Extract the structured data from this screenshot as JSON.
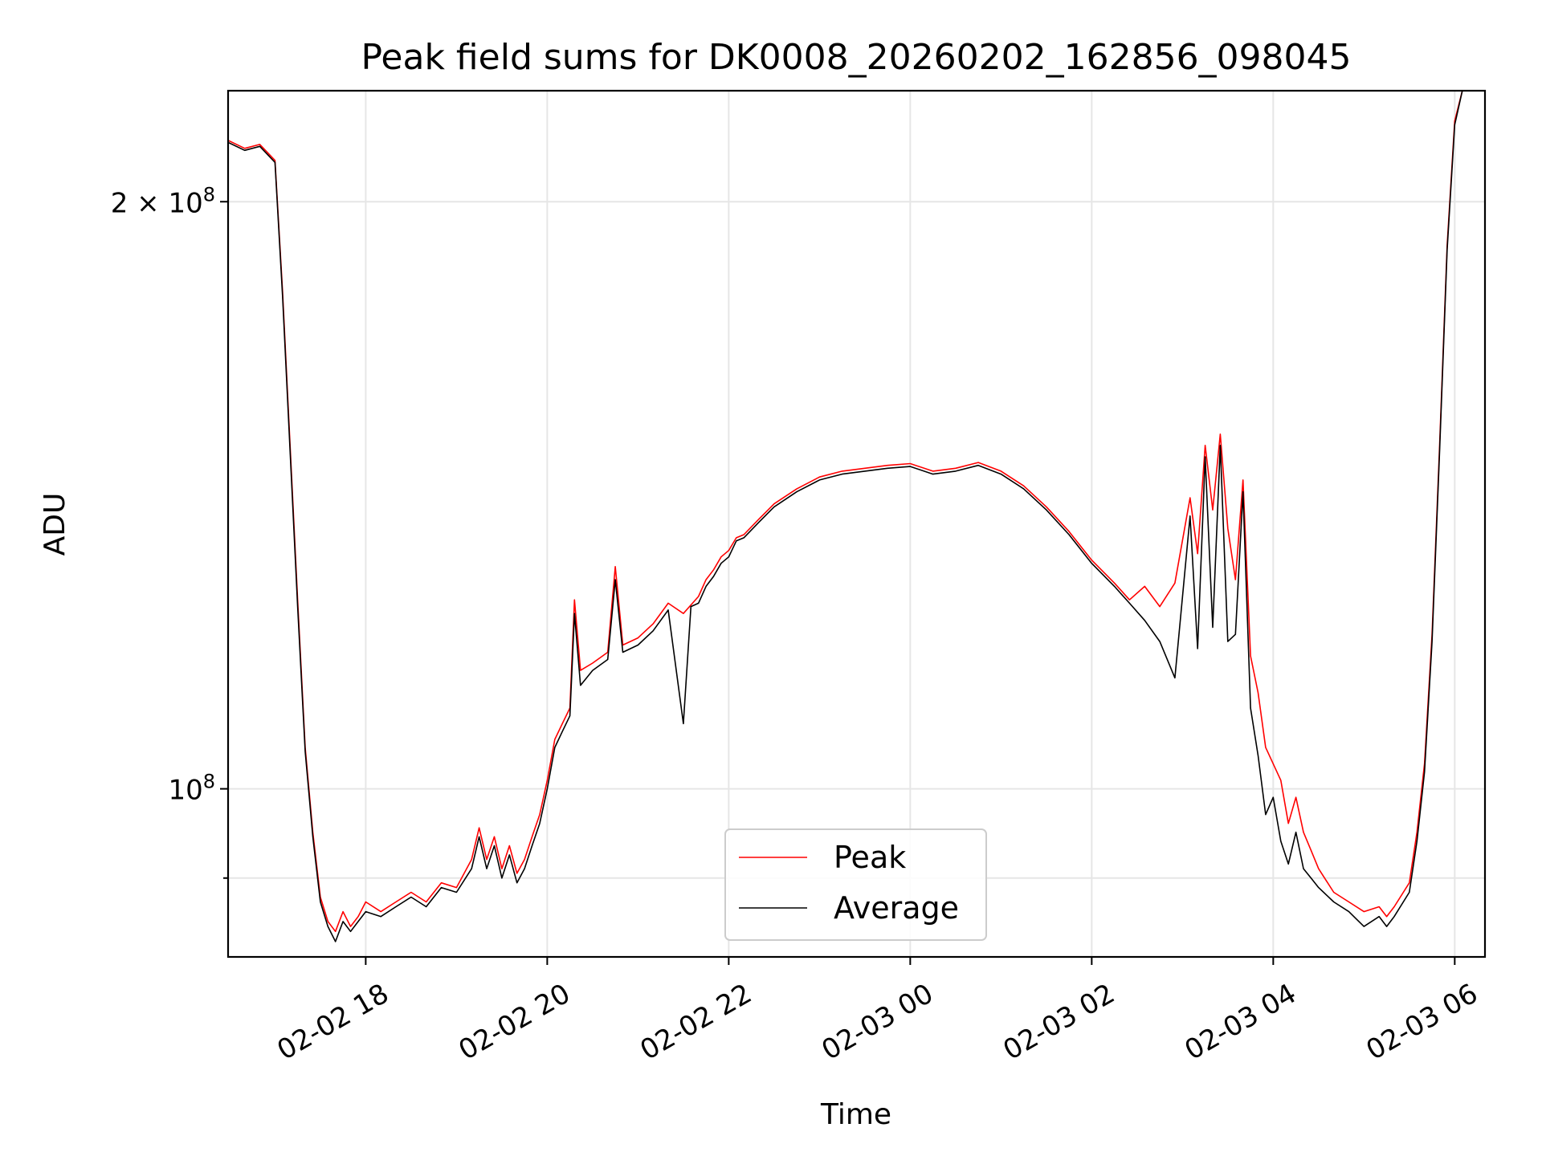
{
  "chart_data": {
    "type": "line",
    "title": "Peak field sums for DK0008_20260202_162856_098045",
    "xlabel": "Time",
    "ylabel": "ADU",
    "x_unit": "datetime",
    "xlim": [
      "2026-02-02T16:29",
      "2026-02-03T06:20"
    ],
    "ylim": [
      82000000,
      228000000
    ],
    "yscale": "log",
    "grid": true,
    "legend": {
      "placement": "lower-center"
    },
    "x_ticks": [
      {
        "value": "2026-02-02T18:00",
        "label": "02-02 18"
      },
      {
        "value": "2026-02-02T20:00",
        "label": "02-02 20"
      },
      {
        "value": "2026-02-02T22:00",
        "label": "02-02 22"
      },
      {
        "value": "2026-02-03T00:00",
        "label": "02-03 00"
      },
      {
        "value": "2026-02-03T02:00",
        "label": "02-03 02"
      },
      {
        "value": "2026-02-03T04:00",
        "label": "02-03 04"
      },
      {
        "value": "2026-02-03T06:00",
        "label": "02-03 06"
      }
    ],
    "y_ticks_major": [
      {
        "value": 100000000,
        "label_base": "10",
        "label_exp": "8",
        "label_coef": ""
      },
      {
        "value": 200000000,
        "label_base": "10",
        "label_exp": "8",
        "label_coef": "2 × "
      }
    ],
    "y_ticks_minor": [
      90000000
    ],
    "series": [
      {
        "name": "Peak",
        "color": "#ff0000",
        "points": [
          [
            "2026-02-02T16:29",
            215000000
          ],
          [
            "2026-02-02T16:40",
            213000000
          ],
          [
            "2026-02-02T16:50",
            214000000
          ],
          [
            "2026-02-02T17:00",
            210000000
          ],
          [
            "2026-02-02T17:05",
            180000000
          ],
          [
            "2026-02-02T17:10",
            150000000
          ],
          [
            "2026-02-02T17:15",
            125000000
          ],
          [
            "2026-02-02T17:20",
            105000000
          ],
          [
            "2026-02-02T17:25",
            95000000
          ],
          [
            "2026-02-02T17:30",
            88000000
          ],
          [
            "2026-02-02T17:35",
            85500000
          ],
          [
            "2026-02-02T17:40",
            84500000
          ],
          [
            "2026-02-02T17:45",
            86500000
          ],
          [
            "2026-02-02T17:50",
            85000000
          ],
          [
            "2026-02-02T17:55",
            86000000
          ],
          [
            "2026-02-02T18:00",
            87500000
          ],
          [
            "2026-02-02T18:10",
            86500000
          ],
          [
            "2026-02-02T18:20",
            87500000
          ],
          [
            "2026-02-02T18:30",
            88500000
          ],
          [
            "2026-02-02T18:40",
            87500000
          ],
          [
            "2026-02-02T18:50",
            89500000
          ],
          [
            "2026-02-02T19:00",
            89000000
          ],
          [
            "2026-02-02T19:10",
            92000000
          ],
          [
            "2026-02-02T19:15",
            95500000
          ],
          [
            "2026-02-02T19:20",
            92000000
          ],
          [
            "2026-02-02T19:25",
            94500000
          ],
          [
            "2026-02-02T19:30",
            91000000
          ],
          [
            "2026-02-02T19:35",
            93500000
          ],
          [
            "2026-02-02T19:40",
            90500000
          ],
          [
            "2026-02-02T19:45",
            92000000
          ],
          [
            "2026-02-02T19:50",
            94500000
          ],
          [
            "2026-02-02T19:55",
            97000000
          ],
          [
            "2026-02-02T20:00",
            101000000
          ],
          [
            "2026-02-02T20:05",
            106000000
          ],
          [
            "2026-02-02T20:10",
            108000000
          ],
          [
            "2026-02-02T20:15",
            110000000
          ],
          [
            "2026-02-02T20:18",
            125000000
          ],
          [
            "2026-02-02T20:22",
            115000000
          ],
          [
            "2026-02-02T20:30",
            116000000
          ],
          [
            "2026-02-02T20:40",
            117500000
          ],
          [
            "2026-02-02T20:45",
            130000000
          ],
          [
            "2026-02-02T20:50",
            118500000
          ],
          [
            "2026-02-02T21:00",
            119500000
          ],
          [
            "2026-02-02T21:10",
            121500000
          ],
          [
            "2026-02-02T21:20",
            124500000
          ],
          [
            "2026-02-02T21:30",
            123000000
          ],
          [
            "2026-02-02T21:40",
            125500000
          ],
          [
            "2026-02-02T21:45",
            128000000
          ],
          [
            "2026-02-02T21:50",
            129500000
          ],
          [
            "2026-02-02T21:55",
            131500000
          ],
          [
            "2026-02-02T22:00",
            132500000
          ],
          [
            "2026-02-02T22:05",
            134500000
          ],
          [
            "2026-02-02T22:10",
            135000000
          ],
          [
            "2026-02-02T22:20",
            137500000
          ],
          [
            "2026-02-02T22:30",
            140000000
          ],
          [
            "2026-02-02T22:45",
            142500000
          ],
          [
            "2026-02-02T23:00",
            144500000
          ],
          [
            "2026-02-02T23:15",
            145500000
          ],
          [
            "2026-02-02T23:30",
            146000000
          ],
          [
            "2026-02-02T23:45",
            146500000
          ],
          [
            "2026-02-03T00:00",
            146800000
          ],
          [
            "2026-02-03T00:15",
            145500000
          ],
          [
            "2026-02-03T00:30",
            146000000
          ],
          [
            "2026-02-03T00:45",
            147000000
          ],
          [
            "2026-02-03T01:00",
            145500000
          ],
          [
            "2026-02-03T01:15",
            143000000
          ],
          [
            "2026-02-03T01:30",
            139500000
          ],
          [
            "2026-02-03T01:45",
            135500000
          ],
          [
            "2026-02-03T02:00",
            131000000
          ],
          [
            "2026-02-03T02:15",
            127500000
          ],
          [
            "2026-02-03T02:25",
            125000000
          ],
          [
            "2026-02-03T02:35",
            127000000
          ],
          [
            "2026-02-03T02:45",
            124000000
          ],
          [
            "2026-02-03T02:55",
            127500000
          ],
          [
            "2026-02-03T03:05",
            141000000
          ],
          [
            "2026-02-03T03:10",
            132000000
          ],
          [
            "2026-02-03T03:15",
            150000000
          ],
          [
            "2026-02-03T03:20",
            139000000
          ],
          [
            "2026-02-03T03:25",
            152000000
          ],
          [
            "2026-02-03T03:30",
            136000000
          ],
          [
            "2026-02-03T03:35",
            128000000
          ],
          [
            "2026-02-03T03:40",
            144000000
          ],
          [
            "2026-02-03T03:45",
            117000000
          ],
          [
            "2026-02-03T03:50",
            112000000
          ],
          [
            "2026-02-03T03:55",
            105000000
          ],
          [
            "2026-02-03T04:00",
            103000000
          ],
          [
            "2026-02-03T04:05",
            101000000
          ],
          [
            "2026-02-03T04:10",
            96000000
          ],
          [
            "2026-02-03T04:15",
            99000000
          ],
          [
            "2026-02-03T04:20",
            95000000
          ],
          [
            "2026-02-03T04:25",
            93000000
          ],
          [
            "2026-02-03T04:30",
            91000000
          ],
          [
            "2026-02-03T04:40",
            88500000
          ],
          [
            "2026-02-03T04:50",
            87500000
          ],
          [
            "2026-02-03T05:00",
            86500000
          ],
          [
            "2026-02-03T05:10",
            87000000
          ],
          [
            "2026-02-03T05:15",
            86000000
          ],
          [
            "2026-02-03T05:20",
            87000000
          ],
          [
            "2026-02-03T05:30",
            89500000
          ],
          [
            "2026-02-03T05:35",
            95000000
          ],
          [
            "2026-02-03T05:40",
            103000000
          ],
          [
            "2026-02-03T05:45",
            120000000
          ],
          [
            "2026-02-03T05:50",
            150000000
          ],
          [
            "2026-02-03T05:55",
            190000000
          ],
          [
            "2026-02-03T06:00",
            220000000
          ],
          [
            "2026-02-03T06:05",
            228000000
          ]
        ]
      },
      {
        "name": "Average",
        "color": "#000000",
        "points": [
          [
            "2026-02-02T16:29",
            214500000
          ],
          [
            "2026-02-02T16:40",
            212500000
          ],
          [
            "2026-02-02T16:50",
            213500000
          ],
          [
            "2026-02-02T17:00",
            209500000
          ],
          [
            "2026-02-02T17:05",
            179000000
          ],
          [
            "2026-02-02T17:10",
            149000000
          ],
          [
            "2026-02-02T17:15",
            124000000
          ],
          [
            "2026-02-02T17:20",
            104500000
          ],
          [
            "2026-02-02T17:25",
            94500000
          ],
          [
            "2026-02-02T17:30",
            87500000
          ],
          [
            "2026-02-02T17:35",
            85000000
          ],
          [
            "2026-02-02T17:40",
            83500000
          ],
          [
            "2026-02-02T17:45",
            85500000
          ],
          [
            "2026-02-02T17:50",
            84500000
          ],
          [
            "2026-02-02T17:55",
            85500000
          ],
          [
            "2026-02-02T18:00",
            86500000
          ],
          [
            "2026-02-02T18:10",
            86000000
          ],
          [
            "2026-02-02T18:20",
            87000000
          ],
          [
            "2026-02-02T18:30",
            88000000
          ],
          [
            "2026-02-02T18:40",
            87000000
          ],
          [
            "2026-02-02T18:50",
            89000000
          ],
          [
            "2026-02-02T19:00",
            88500000
          ],
          [
            "2026-02-02T19:10",
            91000000
          ],
          [
            "2026-02-02T19:15",
            94500000
          ],
          [
            "2026-02-02T19:20",
            91000000
          ],
          [
            "2026-02-02T19:25",
            93500000
          ],
          [
            "2026-02-02T19:30",
            90000000
          ],
          [
            "2026-02-02T19:35",
            92500000
          ],
          [
            "2026-02-02T19:40",
            89500000
          ],
          [
            "2026-02-02T19:45",
            91000000
          ],
          [
            "2026-02-02T19:50",
            93500000
          ],
          [
            "2026-02-02T19:55",
            96000000
          ],
          [
            "2026-02-02T20:00",
            100000000
          ],
          [
            "2026-02-02T20:05",
            105000000
          ],
          [
            "2026-02-02T20:10",
            107000000
          ],
          [
            "2026-02-02T20:15",
            109000000
          ],
          [
            "2026-02-02T20:18",
            123000000
          ],
          [
            "2026-02-02T20:22",
            113000000
          ],
          [
            "2026-02-02T20:30",
            115000000
          ],
          [
            "2026-02-02T20:40",
            116500000
          ],
          [
            "2026-02-02T20:45",
            128000000
          ],
          [
            "2026-02-02T20:50",
            117500000
          ],
          [
            "2026-02-02T21:00",
            118500000
          ],
          [
            "2026-02-02T21:10",
            120500000
          ],
          [
            "2026-02-02T21:20",
            123500000
          ],
          [
            "2026-02-02T21:30",
            108000000
          ],
          [
            "2026-02-02T21:35",
            124000000
          ],
          [
            "2026-02-02T21:40",
            124500000
          ],
          [
            "2026-02-02T21:45",
            127000000
          ],
          [
            "2026-02-02T21:50",
            128500000
          ],
          [
            "2026-02-02T21:55",
            130500000
          ],
          [
            "2026-02-02T22:00",
            131500000
          ],
          [
            "2026-02-02T22:05",
            134000000
          ],
          [
            "2026-02-02T22:10",
            134500000
          ],
          [
            "2026-02-02T22:20",
            137000000
          ],
          [
            "2026-02-02T22:30",
            139500000
          ],
          [
            "2026-02-02T22:45",
            142000000
          ],
          [
            "2026-02-02T23:00",
            144000000
          ],
          [
            "2026-02-02T23:15",
            145000000
          ],
          [
            "2026-02-02T23:30",
            145500000
          ],
          [
            "2026-02-02T23:45",
            146000000
          ],
          [
            "2026-02-03T00:00",
            146300000
          ],
          [
            "2026-02-03T00:15",
            145000000
          ],
          [
            "2026-02-03T00:30",
            145500000
          ],
          [
            "2026-02-03T00:45",
            146500000
          ],
          [
            "2026-02-03T01:00",
            145000000
          ],
          [
            "2026-02-03T01:15",
            142500000
          ],
          [
            "2026-02-03T01:30",
            139000000
          ],
          [
            "2026-02-03T01:45",
            135000000
          ],
          [
            "2026-02-03T02:00",
            130500000
          ],
          [
            "2026-02-03T02:15",
            127000000
          ],
          [
            "2026-02-03T02:25",
            124500000
          ],
          [
            "2026-02-03T02:35",
            122000000
          ],
          [
            "2026-02-03T02:45",
            119000000
          ],
          [
            "2026-02-03T02:55",
            114000000
          ],
          [
            "2026-02-03T03:05",
            138000000
          ],
          [
            "2026-02-03T03:10",
            118000000
          ],
          [
            "2026-02-03T03:15",
            148000000
          ],
          [
            "2026-02-03T03:20",
            121000000
          ],
          [
            "2026-02-03T03:25",
            150000000
          ],
          [
            "2026-02-03T03:30",
            119000000
          ],
          [
            "2026-02-03T03:35",
            120000000
          ],
          [
            "2026-02-03T03:40",
            142000000
          ],
          [
            "2026-02-03T03:45",
            110000000
          ],
          [
            "2026-02-03T03:50",
            104000000
          ],
          [
            "2026-02-03T03:55",
            97000000
          ],
          [
            "2026-02-03T04:00",
            99000000
          ],
          [
            "2026-02-03T04:05",
            94000000
          ],
          [
            "2026-02-03T04:10",
            91500000
          ],
          [
            "2026-02-03T04:15",
            95000000
          ],
          [
            "2026-02-03T04:20",
            91000000
          ],
          [
            "2026-02-03T04:25",
            90000000
          ],
          [
            "2026-02-03T04:30",
            89000000
          ],
          [
            "2026-02-03T04:40",
            87500000
          ],
          [
            "2026-02-03T04:50",
            86500000
          ],
          [
            "2026-02-03T05:00",
            85000000
          ],
          [
            "2026-02-03T05:10",
            86000000
          ],
          [
            "2026-02-03T05:15",
            85000000
          ],
          [
            "2026-02-03T05:20",
            86000000
          ],
          [
            "2026-02-03T05:30",
            88500000
          ],
          [
            "2026-02-03T05:35",
            94000000
          ],
          [
            "2026-02-03T05:40",
            102000000
          ],
          [
            "2026-02-03T05:45",
            119000000
          ],
          [
            "2026-02-03T05:50",
            149000000
          ],
          [
            "2026-02-03T05:55",
            189000000
          ],
          [
            "2026-02-03T06:00",
            219000000
          ],
          [
            "2026-02-03T06:05",
            228000000
          ]
        ]
      }
    ]
  }
}
